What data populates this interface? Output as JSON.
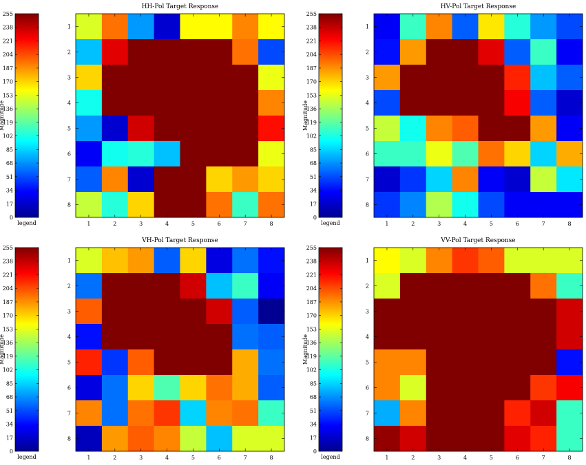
{
  "colorbar": {
    "ticks": [
      0,
      17,
      34,
      51,
      68,
      85,
      102,
      119,
      136,
      153,
      170,
      187,
      204,
      221,
      238,
      255
    ],
    "ylabel": "Magnitude",
    "footer": "legend",
    "range": [
      0,
      255
    ],
    "colormap": "jet"
  },
  "chart_data": [
    {
      "type": "heatmap",
      "title": "HH-Pol Target Response",
      "x": [
        1,
        2,
        3,
        4,
        5,
        6,
        7,
        8
      ],
      "y": [
        1,
        2,
        3,
        4,
        5,
        6,
        7,
        8
      ],
      "zlim": [
        0,
        255
      ],
      "values": [
        [
          150,
          195,
          70,
          20,
          160,
          160,
          190,
          160
        ],
        [
          80,
          230,
          255,
          255,
          255,
          255,
          195,
          50
        ],
        [
          170,
          255,
          255,
          255,
          255,
          255,
          255,
          155
        ],
        [
          100,
          255,
          255,
          255,
          255,
          255,
          255,
          190
        ],
        [
          70,
          20,
          235,
          255,
          255,
          255,
          255,
          220
        ],
        [
          30,
          100,
          105,
          80,
          255,
          255,
          255,
          155
        ],
        [
          55,
          190,
          20,
          255,
          255,
          170,
          185,
          170
        ],
        [
          145,
          105,
          170,
          255,
          255,
          195,
          110,
          195
        ]
      ]
    },
    {
      "type": "heatmap",
      "title": "HV-Pol Target Response",
      "x": [
        1,
        2,
        3,
        4,
        5,
        6,
        7,
        8
      ],
      "y": [
        1,
        2,
        3,
        4,
        5,
        6,
        7,
        8
      ],
      "zlim": [
        0,
        255
      ],
      "values": [
        [
          30,
          110,
          190,
          55,
          165,
          105,
          70,
          50
        ],
        [
          35,
          185,
          255,
          255,
          230,
          55,
          110,
          30
        ],
        [
          185,
          255,
          255,
          255,
          255,
          215,
          80,
          55
        ],
        [
          50,
          255,
          255,
          255,
          255,
          225,
          55,
          20
        ],
        [
          145,
          100,
          190,
          200,
          255,
          255,
          185,
          30
        ],
        [
          110,
          110,
          155,
          115,
          195,
          170,
          85,
          180
        ],
        [
          20,
          45,
          85,
          190,
          30,
          20,
          145,
          90
        ],
        [
          45,
          65,
          140,
          100,
          50,
          30,
          30,
          30
        ]
      ]
    },
    {
      "type": "heatmap",
      "title": "VH-Pol Target Response",
      "x": [
        1,
        2,
        3,
        4,
        5,
        6,
        7,
        8
      ],
      "y": [
        1,
        2,
        3,
        4,
        5,
        6,
        7,
        8
      ],
      "zlim": [
        0,
        255
      ],
      "values": [
        [
          150,
          175,
          185,
          55,
          170,
          25,
          60,
          35
        ],
        [
          60,
          255,
          255,
          255,
          235,
          80,
          110,
          30
        ],
        [
          200,
          255,
          255,
          255,
          255,
          235,
          55,
          5
        ],
        [
          35,
          255,
          255,
          255,
          255,
          255,
          60,
          55
        ],
        [
          215,
          45,
          200,
          255,
          255,
          255,
          180,
          60
        ],
        [
          25,
          60,
          170,
          115,
          170,
          195,
          180,
          55
        ],
        [
          190,
          60,
          195,
          210,
          85,
          190,
          195,
          110
        ],
        [
          15,
          185,
          200,
          190,
          145,
          80,
          150,
          150
        ]
      ]
    },
    {
      "type": "heatmap",
      "title": "VV-Pol Target Response",
      "x": [
        1,
        2,
        3,
        4,
        5,
        6,
        7,
        8
      ],
      "y": [
        1,
        2,
        3,
        4,
        5,
        6,
        7,
        8
      ],
      "zlim": [
        0,
        255
      ],
      "values": [
        [
          160,
          150,
          190,
          210,
          200,
          150,
          150,
          150
        ],
        [
          150,
          255,
          255,
          255,
          255,
          255,
          195,
          110
        ],
        [
          255,
          255,
          255,
          255,
          255,
          255,
          255,
          235
        ],
        [
          255,
          255,
          255,
          255,
          255,
          255,
          255,
          235
        ],
        [
          190,
          190,
          255,
          255,
          255,
          255,
          255,
          35
        ],
        [
          190,
          150,
          255,
          255,
          255,
          255,
          210,
          225
        ],
        [
          75,
          190,
          255,
          255,
          255,
          215,
          235,
          110
        ],
        [
          250,
          235,
          255,
          255,
          255,
          230,
          215,
          110
        ]
      ]
    }
  ]
}
